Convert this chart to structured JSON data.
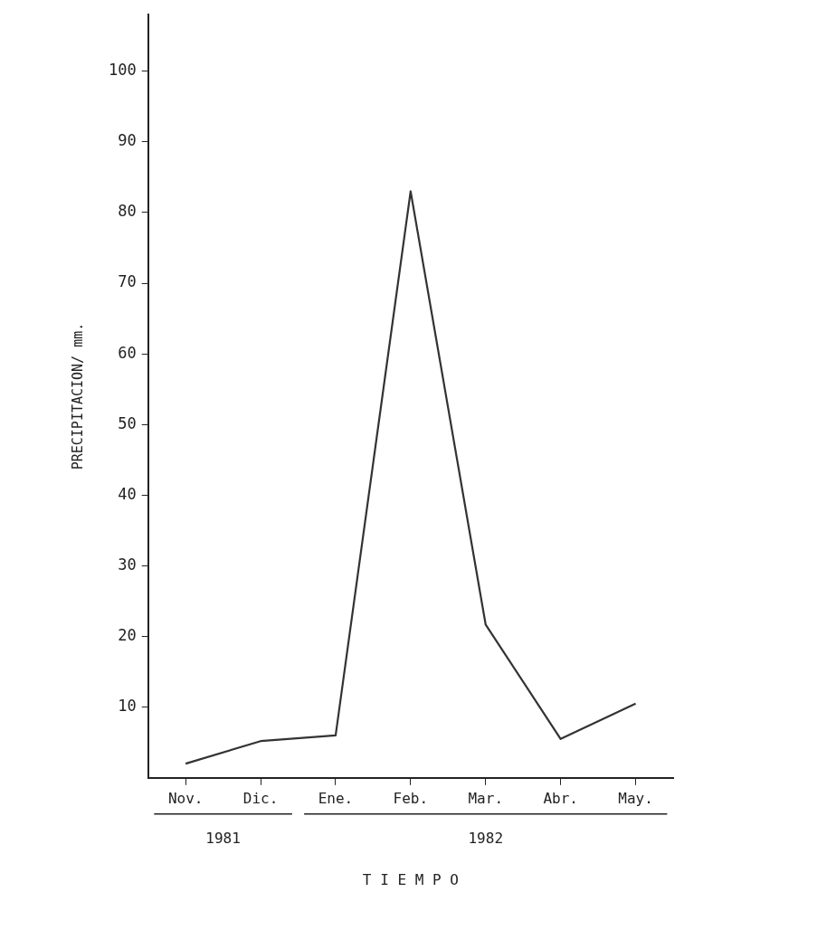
{
  "chart_data": {
    "type": "line",
    "xlabel": "T I E M P O",
    "ylabel": "PRECIPITACION/ mm.",
    "categories": [
      "Nov.",
      "Dic.",
      "Ene.",
      "Feb.",
      "Mar.",
      "Abr.",
      "May."
    ],
    "series": [
      {
        "color": "#333333",
        "values": [
          2,
          5.2,
          6,
          83,
          21.7,
          5.5,
          10.5
        ]
      }
    ],
    "ylim": [
      0,
      108
    ],
    "yticks": [
      10,
      20,
      30,
      40,
      50,
      60,
      70,
      80,
      90,
      100
    ],
    "grid": false,
    "legend": false,
    "marker": "none",
    "line_style": "solid",
    "annotations": [
      "1981",
      "1982"
    ]
  }
}
